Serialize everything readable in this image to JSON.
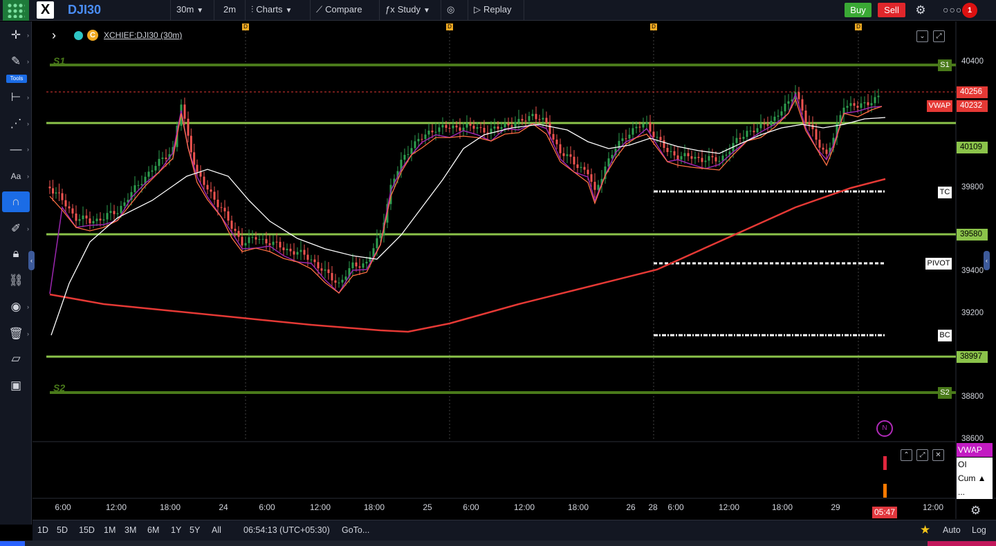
{
  "header": {
    "symbol": "DJI30",
    "interval": "30m",
    "interval2": "2m",
    "charts_label": "Charts",
    "compare_label": "Compare",
    "study_label": "Study",
    "replay_label": "Replay",
    "buy_label": "Buy",
    "sell_label": "Sell",
    "alert_count": "1"
  },
  "left_toolbar": {
    "tools_badge": "Tools",
    "icons": [
      "crosshair-icon",
      "pencil-icon",
      "pitchfork-icon",
      "pattern-icon",
      "horizontal-line-icon",
      "text-icon",
      "magnet-icon",
      "brush-icon",
      "lock-icon",
      "link-icon",
      "eye-icon",
      "trash-icon",
      "ruler-icon",
      "screenshot-icon"
    ]
  },
  "chart": {
    "legend_symbol": "XCHIEF:DJI30 (30m)",
    "legend_c": "C",
    "dividend_marker": "D",
    "price_axis": {
      "ticks": [
        {
          "label": "40400",
          "value": 40400
        },
        {
          "label": "39800",
          "value": 39800
        },
        {
          "label": "39400",
          "value": 39400
        },
        {
          "label": "39200",
          "value": 39200
        },
        {
          "label": "38800",
          "value": 38800
        },
        {
          "label": "38600",
          "value": 38600
        }
      ],
      "current_price": "40256",
      "vwap_value": "40232",
      "vwap_label": "VWAP",
      "level_40109": "40109",
      "level_39580": "39580",
      "level_38997": "38997"
    },
    "pivot_levels": {
      "s1_label": "S1",
      "s2_label": "S2",
      "tc_label": "TC",
      "pivot_label": "PIVOT",
      "bc_label": "BC"
    },
    "time_axis": [
      "6:00",
      "12:00",
      "18:00",
      "24",
      "6:00",
      "12:00",
      "18:00",
      "25",
      "6:00",
      "12:00",
      "18:00",
      "26",
      "28",
      "6:00",
      "12:00",
      "18:00",
      "29",
      "12:00"
    ],
    "time_now": "05:47",
    "news_marker": "N",
    "colors": {
      "up": "#26a69a",
      "up_candle": "#2e9e4f",
      "down": "#ef5350",
      "pivot_green": "#8bc34a",
      "s_line": "#4a7a1a",
      "ema_red": "#e53935",
      "vwap_purple": "#9c27b0",
      "white_ma": "#ffffff",
      "orange_ma": "#ff7043"
    }
  },
  "indicator_panel": {
    "vwap": "VWAP",
    "oi": "OI DChng",
    "cum": "Cum ▲",
    "more": "..."
  },
  "bottom_bar": {
    "ranges": [
      "1D",
      "5D",
      "15D",
      "1M",
      "3M",
      "6M",
      "1Y",
      "5Y",
      "All"
    ],
    "clock": "06:54:13 (UTC+05:30)",
    "goto": "GoTo...",
    "auto": "Auto",
    "log": "Log"
  }
}
